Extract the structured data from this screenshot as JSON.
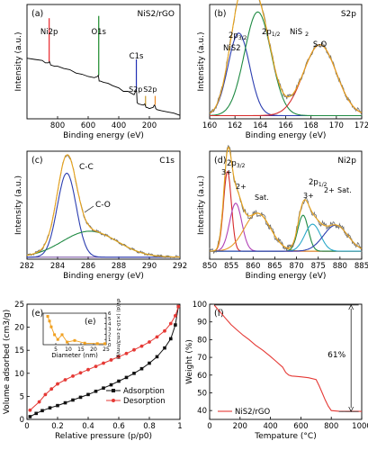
{
  "chart_data": [
    {
      "id": "a",
      "type": "line",
      "panel_label": "(a)",
      "title": "NiS2/rGO",
      "xlabel": "Binding energy (eV)",
      "ylabel": "Intensity (a.u.)",
      "xlim": [
        1000,
        0
      ],
      "xticks": [
        800,
        600,
        400,
        200
      ],
      "yticks_shown": false,
      "series": [
        {
          "color": "#000000",
          "x": [
            1000,
            950,
            900,
            880,
            860,
            853,
            845,
            820,
            800,
            760,
            720,
            680,
            640,
            600,
            560,
            540,
            534,
            531,
            528,
            520,
            500,
            470,
            440,
            400,
            370,
            340,
            300,
            290,
            285,
            283,
            280,
            270,
            240,
            230,
            225,
            222,
            215,
            200,
            175,
            168,
            162,
            158,
            150,
            120,
            80,
            40,
            0
          ],
          "y": [
            53,
            52,
            51,
            49,
            49,
            50,
            47,
            46,
            46,
            44,
            43,
            40,
            39,
            37,
            36,
            37,
            38,
            36,
            33,
            33,
            32,
            31,
            29,
            27,
            24,
            24,
            21,
            24,
            25,
            23,
            14,
            13,
            12,
            13,
            11,
            10,
            10,
            9,
            10,
            12,
            11,
            9,
            8,
            7,
            6,
            5,
            3
          ]
        }
      ],
      "peak_markers": [
        {
          "label": "Ni2p",
          "x": 855,
          "y_top": 88,
          "y_base": 50,
          "color": "#e8262b"
        },
        {
          "label": "O1s",
          "x": 531,
          "y_top": 90,
          "y_base": 38,
          "color": "#1b8a2a"
        },
        {
          "label": "C1s",
          "x": 285,
          "y_top": 52,
          "y_base": 25,
          "color": "#1f2fb4"
        },
        {
          "label": "S2p",
          "x": 225,
          "y_top": 20,
          "y_base": 11,
          "color": "#c99a2e"
        },
        {
          "label": "S2p",
          "x": 162,
          "y_top": 20,
          "y_base": 12,
          "color": "#ee8a26"
        }
      ],
      "annotations": [
        "C1s",
        "O1s",
        "Ni2p",
        "S2p",
        "S2p"
      ]
    },
    {
      "id": "b",
      "type": "line",
      "panel_label": "(b)",
      "title": "S2p",
      "xlabel": "Binding energy (eV)",
      "ylabel": "Intensity (a.u.)",
      "xlim": [
        160,
        172
      ],
      "xticks": [
        160,
        162,
        164,
        166,
        168,
        170,
        172
      ],
      "yticks_shown": false,
      "peaks": [
        {
          "name": "2p3/2 NiS2",
          "center": 162.3,
          "height": 0.78,
          "width": 0.85,
          "color": "#2c3eb0"
        },
        {
          "name": "2p1/2 NiS2",
          "center": 163.8,
          "height": 0.98,
          "width": 1.05,
          "color": "#1f8a43"
        },
        {
          "name": "S-O",
          "center": 168.7,
          "height": 0.67,
          "width": 1.3,
          "color": "#d62a2a"
        }
      ],
      "baseline": 0.03,
      "annotations": [
        "2p3/2",
        "NiS2",
        "2p1/2 NiS2",
        "S-O"
      ]
    },
    {
      "id": "c",
      "type": "line",
      "panel_label": "(c)",
      "title": "C1s",
      "xlabel": "Binding energy (eV)",
      "ylabel": "Intensity (a.u.)",
      "xlim": [
        282,
        292
      ],
      "xticks": [
        282,
        284,
        286,
        288,
        290,
        292
      ],
      "yticks_shown": false,
      "peaks": [
        {
          "name": "C-C",
          "center": 284.6,
          "height": 0.84,
          "width": 0.62,
          "color": "#2c3eb0"
        },
        {
          "name": "C-O",
          "center": 286.1,
          "height": 0.26,
          "width": 1.8,
          "color": "#1f8a43"
        }
      ],
      "baseline": 0.02,
      "annotations": [
        "C-C",
        "C-O"
      ]
    },
    {
      "id": "d",
      "type": "line",
      "panel_label": "(d)",
      "title": "Ni2p",
      "xlabel": "Binding energy (eV)",
      "ylabel": "Intensity (a.u.)",
      "xlim": [
        850,
        885
      ],
      "xticks": [
        850,
        855,
        860,
        865,
        870,
        875,
        880,
        885
      ],
      "yticks_shown": false,
      "peaks": [
        {
          "name": "3+ (2p3/2)",
          "center": 854.1,
          "height": 0.8,
          "width": 0.9,
          "color": "#d62a2a"
        },
        {
          "name": "2+ (2p3/2)",
          "center": 856.0,
          "height": 0.48,
          "width": 1.4,
          "color": "#b040b5"
        },
        {
          "name": "Sat.",
          "center": 861.0,
          "height": 0.38,
          "width": 3.0,
          "color": "#e69a26"
        },
        {
          "name": "3+ (2p1/2)",
          "center": 871.5,
          "height": 0.36,
          "width": 1.2,
          "color": "#1f8a43"
        },
        {
          "name": "2+ (2p1/2)",
          "center": 873.7,
          "height": 0.27,
          "width": 1.8,
          "color": "#2aa8c8"
        },
        {
          "name": "Sat.",
          "center": 879.0,
          "height": 0.26,
          "width": 2.8,
          "color": "#2c3eb0"
        }
      ],
      "baseline": 0.08,
      "annotations": [
        "3+",
        "2p3/2",
        "2+",
        "Sat.",
        "3+",
        "2p1/2",
        "2+",
        "Sat."
      ]
    },
    {
      "id": "e",
      "type": "line",
      "panel_label": "(e)",
      "xlabel": "Relative pressure (p/p0)",
      "ylabel": "Volume adsorbed (cm3/g)",
      "xlim": [
        0.0,
        1.0
      ],
      "ylim": [
        0,
        25
      ],
      "xticks": [
        0.0,
        0.2,
        0.4,
        0.6,
        0.8,
        1.0
      ],
      "yticks": [
        0,
        5,
        10,
        15,
        20,
        25
      ],
      "legend": "bottom-right",
      "series": [
        {
          "name": "Adsorption",
          "color": "#111111",
          "marker": "square",
          "x": [
            0.02,
            0.06,
            0.1,
            0.15,
            0.2,
            0.25,
            0.3,
            0.35,
            0.4,
            0.45,
            0.5,
            0.55,
            0.6,
            0.65,
            0.7,
            0.75,
            0.8,
            0.85,
            0.9,
            0.94,
            0.97,
            0.99
          ],
          "y": [
            0.6,
            1.3,
            1.9,
            2.5,
            3.0,
            3.6,
            4.2,
            4.8,
            5.4,
            6.1,
            6.8,
            7.5,
            8.3,
            9.1,
            10.0,
            11.0,
            12.2,
            13.6,
            15.5,
            17.5,
            20.5,
            24.5
          ]
        },
        {
          "name": "Desorption",
          "color": "#e53935",
          "marker": "circle",
          "x": [
            0.02,
            0.08,
            0.12,
            0.16,
            0.2,
            0.25,
            0.3,
            0.35,
            0.4,
            0.45,
            0.5,
            0.55,
            0.6,
            0.65,
            0.7,
            0.75,
            0.8,
            0.85,
            0.9,
            0.94,
            0.97,
            0.99
          ],
          "y": [
            2.0,
            3.8,
            5.4,
            6.6,
            7.7,
            8.6,
            9.4,
            10.1,
            10.8,
            11.5,
            12.2,
            12.9,
            13.6,
            14.3,
            15.1,
            15.9,
            16.8,
            17.9,
            19.2,
            20.8,
            22.5,
            24.5
          ]
        }
      ]
    },
    {
      "id": "e-inset",
      "type": "line",
      "xlabel": "Diameter (nm)",
      "ylabel": "dV(d) (×10-3 cm3/nm/g)",
      "xlim": [
        0,
        25
      ],
      "ylim": [
        0,
        6
      ],
      "xticks": [
        5,
        10,
        15,
        20,
        25
      ],
      "xtick_labels": [
        "5",
        "10",
        "15",
        "20",
        "25"
      ],
      "yticks": [
        0,
        1,
        2,
        3,
        4,
        5,
        6
      ],
      "series": [
        {
          "color": "#f0a020",
          "marker": "square",
          "x": [
            1.8,
            2.5,
            3.2,
            4.5,
            5.8,
            7.5,
            9.5,
            12.5,
            16.5,
            21.5,
            24.5
          ],
          "y": [
            5.4,
            4.5,
            3.4,
            1.9,
            1.0,
            1.9,
            0.5,
            0.8,
            0.3,
            0.2,
            0.2
          ]
        }
      ]
    },
    {
      "id": "f",
      "type": "line",
      "panel_label": "(f)",
      "xlabel": "Tempature (°C)",
      "ylabel": "Weight (%)",
      "xlim": [
        0,
        1000
      ],
      "ylim": [
        35,
        100
      ],
      "xticks": [
        0,
        200,
        400,
        600,
        800,
        1000
      ],
      "yticks": [
        40,
        50,
        60,
        70,
        80,
        90,
        100
      ],
      "legend": "bottom-left",
      "annotations": [
        "61%"
      ],
      "series": [
        {
          "name": "NiS2/rGO",
          "color": "#e53935",
          "x": [
            30,
            60,
            100,
            140,
            180,
            220,
            260,
            300,
            350,
            400,
            440,
            480,
            500,
            520,
            540,
            560,
            600,
            650,
            700,
            720,
            740,
            760,
            780,
            800,
            850,
            900,
            1000
          ],
          "y": [
            99.5,
            96.5,
            92.5,
            88.5,
            85.5,
            82.5,
            80.0,
            77.0,
            74.0,
            70.5,
            67.5,
            64.5,
            61.5,
            60.0,
            59.5,
            59.3,
            59.0,
            58.5,
            57.5,
            54.0,
            50.0,
            46.0,
            42.5,
            40.0,
            39.6,
            39.5,
            39.5
          ]
        }
      ]
    }
  ]
}
